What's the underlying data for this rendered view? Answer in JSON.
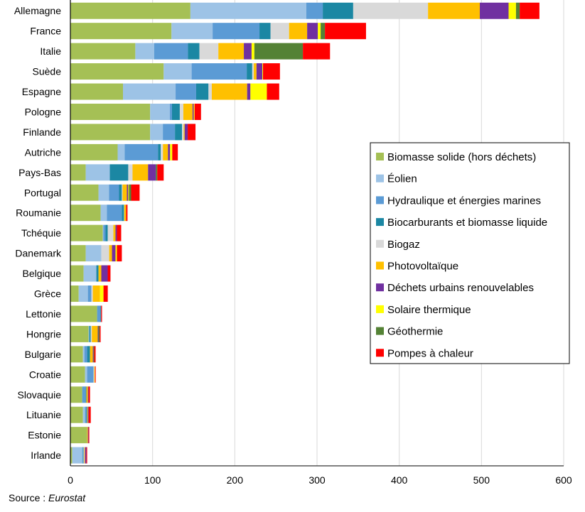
{
  "chart_data": {
    "type": "bar",
    "orientation": "horizontal",
    "stacked": true,
    "title": "",
    "xlabel": "",
    "ylabel": "",
    "xlim": [
      0,
      600
    ],
    "xticks": [
      0,
      100,
      200,
      300,
      400,
      500,
      600
    ],
    "grid": "vertical",
    "legend_position": "right",
    "categories": [
      "Allemagne",
      "France",
      "Italie",
      "Suède",
      "Espagne",
      "Pologne",
      "Finlande",
      "Autriche",
      "Pays-Bas",
      "Portugal",
      "Roumanie",
      "Tchéquie",
      "Danemark",
      "Belgique",
      "Grèce",
      "Lettonie",
      "Hongrie",
      "Bulgarie",
      "Croatie",
      "Slovaquie",
      "Lituanie",
      "Estonie",
      "Irlande"
    ],
    "series": [
      {
        "name": "Biomasse solide (hors déchets)",
        "color": "#A5C055",
        "values": [
          146,
          123,
          79,
          113.5,
          64,
          97,
          97,
          57.5,
          18.7,
          34.2,
          36.8,
          39.4,
          18.7,
          16.1,
          10.1,
          32.5,
          22.1,
          15.2,
          17.8,
          14.4,
          15.2,
          20.4,
          2.3
        ]
      },
      {
        "name": "Éolien",
        "color": "#9DC3E6",
        "values": [
          141,
          50,
          23,
          34,
          64,
          24,
          15.5,
          8.6,
          29.3,
          12.9,
          7.7,
          0.8,
          19,
          15.5,
          11.2,
          0,
          0.9,
          1.8,
          2.6,
          0,
          2.6,
          0,
          12.1
        ]
      },
      {
        "name": "Hydraulique et énergies marines",
        "color": "#5B9BD5",
        "values": [
          20,
          57,
          41,
          67,
          25,
          2.6,
          14.7,
          40.5,
          0,
          12.1,
          18.1,
          2.6,
          0,
          0,
          4.3,
          4,
          0,
          3.4,
          7.8,
          4.3,
          1.7,
          0,
          0.9
        ]
      },
      {
        "name": "Biocarburants et biomasse liquide",
        "color": "#1B87A3",
        "values": [
          37,
          13.5,
          14,
          6.7,
          15,
          9.5,
          8.6,
          3.4,
          22.4,
          3.4,
          2.6,
          2.6,
          0,
          2.6,
          0,
          0.9,
          1.7,
          3.5,
          0,
          0.8,
          0.9,
          0,
          0.8
        ]
      },
      {
        "name": "Biogaz",
        "color": "#D9D9D9",
        "values": [
          91,
          22.5,
          23,
          1.9,
          4,
          4.3,
          2,
          2.6,
          5.2,
          0.9,
          0.3,
          6.9,
          9.5,
          0,
          1.7,
          0,
          1.4,
          0,
          0.9,
          0,
          0,
          0,
          0.9
        ]
      },
      {
        "name": "Photovoltaïque",
        "color": "#FFC000",
        "values": [
          63,
          22,
          31,
          3.3,
          43,
          11.2,
          1.2,
          6.1,
          18.9,
          5.2,
          2.3,
          2.6,
          3.4,
          3.4,
          8.7,
          0,
          7.2,
          3.4,
          0.9,
          1.8,
          0.9,
          0.9,
          0.8
        ]
      },
      {
        "name": "Déchets urbains renouvelables",
        "color": "#7030A0",
        "values": [
          35,
          13,
          9.4,
          7.1,
          4,
          1.4,
          3.7,
          2.6,
          9.5,
          1.7,
          0,
          1.7,
          4.3,
          7.8,
          0,
          0,
          0.9,
          0.9,
          0,
          0.8,
          0.9,
          0.8,
          1.7
        ]
      },
      {
        "name": "Solaire thermique",
        "color": "#FFFF00",
        "values": [
          9,
          3.4,
          3.4,
          0.8,
          20,
          1.1,
          0,
          2.6,
          0,
          0.9,
          0,
          0,
          1.7,
          0,
          4.3,
          0,
          0,
          0,
          0,
          0,
          0,
          0,
          0
        ]
      },
      {
        "name": "Géothermie",
        "color": "#548235",
        "values": [
          4.5,
          5.2,
          59,
          0,
          0,
          0,
          0,
          0,
          1.7,
          2.6,
          0,
          0,
          0,
          0,
          0,
          0,
          1.4,
          0.8,
          0,
          0,
          0,
          0,
          0
        ]
      },
      {
        "name": "Pompes à chaleur",
        "color": "#FF0000",
        "values": [
          24,
          50,
          33,
          20.6,
          15,
          7.8,
          9.5,
          6.8,
          7.8,
          10.3,
          1.7,
          5.2,
          6,
          3.4,
          5.2,
          1.1,
          1.2,
          1.7,
          0.8,
          1.8,
          2.6,
          0.9,
          0.9
        ]
      }
    ],
    "source_label": "Source : ",
    "source_name": "Eurostat"
  }
}
